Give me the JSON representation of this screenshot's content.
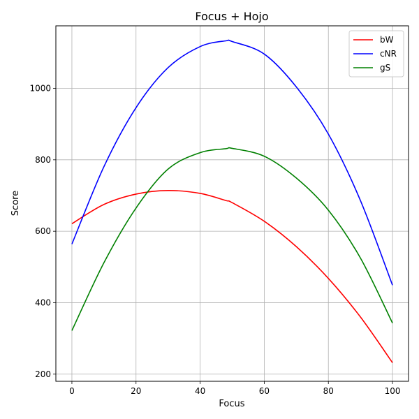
{
  "chart_data": {
    "type": "line",
    "title": "Focus + Hojo",
    "xlabel": "Focus",
    "ylabel": "Score",
    "xlim": [
      -5,
      105
    ],
    "ylim": [
      180,
      1175
    ],
    "xticks": [
      0,
      20,
      40,
      60,
      80,
      100
    ],
    "yticks": [
      200,
      400,
      600,
      800,
      1000
    ],
    "grid": true,
    "legend_position": "top-right",
    "x": [
      0,
      10,
      20,
      30,
      40,
      48,
      50,
      60,
      70,
      80,
      90,
      100
    ],
    "series": [
      {
        "name": "bW",
        "color": "#ff0000",
        "values": [
          621,
          675,
          704,
          714,
          706,
          686,
          680,
          628,
          557,
          468,
          360,
          232
        ]
      },
      {
        "name": "cNR",
        "color": "#0000ff",
        "values": [
          564,
          781,
          946,
          1058,
          1117,
          1133,
          1131,
          1096,
          1004,
          872,
          686,
          449
        ]
      },
      {
        "name": "gS",
        "color": "#008000",
        "values": [
          322,
          512,
          665,
          774,
          820,
          831,
          832,
          810,
          749,
          659,
          525,
          343
        ]
      }
    ]
  }
}
